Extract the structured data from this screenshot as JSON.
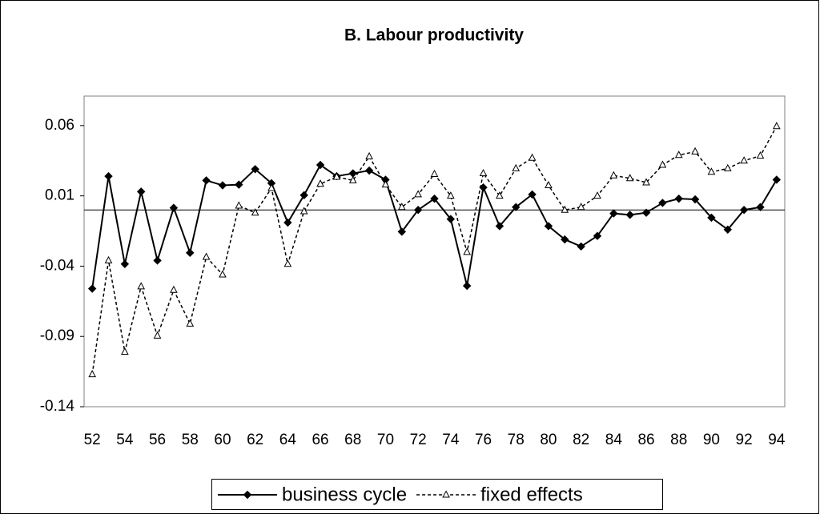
{
  "chart_data": {
    "type": "line",
    "title": "B. Labour productivity",
    "x": [
      52,
      53,
      54,
      55,
      56,
      57,
      58,
      59,
      60,
      61,
      62,
      63,
      64,
      65,
      66,
      67,
      68,
      69,
      70,
      71,
      72,
      73,
      74,
      75,
      76,
      77,
      78,
      79,
      80,
      81,
      82,
      83,
      84,
      85,
      86,
      87,
      88,
      89,
      90,
      91,
      92,
      93,
      94
    ],
    "series": [
      {
        "name": "business cycle",
        "color": "#000000",
        "line_style": "solid",
        "marker": "diamond",
        "values": [
          -0.056,
          0.024,
          -0.0385,
          0.013,
          -0.036,
          0.0015,
          -0.0305,
          0.021,
          0.0175,
          0.018,
          0.029,
          0.019,
          -0.009,
          0.0105,
          0.032,
          0.024,
          0.026,
          0.028,
          0.0215,
          -0.0155,
          0,
          0.008,
          -0.0065,
          -0.054,
          0.016,
          -0.0115,
          0.002,
          0.011,
          -0.0115,
          -0.021,
          -0.026,
          -0.0185,
          -0.0025,
          -0.0035,
          -0.002,
          0.005,
          0.008,
          0.0075,
          -0.0055,
          -0.014,
          0,
          0.002,
          0.0215
        ]
      },
      {
        "name": "fixed effects",
        "color": "#000000",
        "line_style": "dashed",
        "marker": "triangle",
        "values": [
          -0.117,
          -0.036,
          -0.101,
          -0.0545,
          -0.0895,
          -0.057,
          -0.081,
          -0.0335,
          -0.046,
          0.003,
          -0.002,
          0.0155,
          -0.0385,
          -0.001,
          0.0185,
          0.0235,
          0.021,
          0.038,
          0.018,
          0.002,
          0.011,
          0.0255,
          0.01,
          -0.03,
          0.026,
          0.01,
          0.0295,
          0.037,
          0.0175,
          0,
          0.002,
          0.01,
          0.0245,
          0.0225,
          0.0195,
          0.032,
          0.039,
          0.0415,
          0.027,
          0.0295,
          0.035,
          0.0385,
          0.0595
        ]
      }
    ],
    "xlim": [
      51.5,
      94.5
    ],
    "xticks": [
      52,
      54,
      56,
      58,
      60,
      62,
      64,
      66,
      68,
      70,
      72,
      74,
      76,
      78,
      80,
      82,
      84,
      86,
      88,
      90,
      92,
      94
    ],
    "ylim": [
      -0.14,
      0.081
    ],
    "yticks": [
      -0.14,
      -0.09,
      -0.04,
      0.01,
      0.06
    ],
    "zero_line": true,
    "legend": "bottom"
  }
}
